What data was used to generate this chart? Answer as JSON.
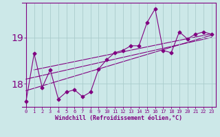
{
  "x": [
    0,
    1,
    2,
    3,
    4,
    5,
    6,
    7,
    8,
    9,
    10,
    11,
    12,
    13,
    14,
    15,
    16,
    17,
    18,
    19,
    20,
    21,
    22,
    23
  ],
  "y_main": [
    17.62,
    18.65,
    17.92,
    18.3,
    17.67,
    17.82,
    17.87,
    17.72,
    17.82,
    18.32,
    18.52,
    18.67,
    18.72,
    18.82,
    18.82,
    19.32,
    19.62,
    18.72,
    18.67,
    19.12,
    18.97,
    19.07,
    19.12,
    19.07
  ],
  "trend1_x": [
    0,
    23
  ],
  "trend1_y": [
    17.85,
    19.05
  ],
  "trend2_x": [
    0,
    23
  ],
  "trend2_y": [
    18.1,
    19.0
  ],
  "trend3_x": [
    1,
    23
  ],
  "trend3_y": [
    18.3,
    19.08
  ],
  "ylim_min": 17.5,
  "ylim_max": 19.75,
  "yticks": [
    18,
    19
  ],
  "xlim_min": -0.5,
  "xlim_max": 23.5,
  "xtick_labels": [
    "0",
    "1",
    "2",
    "3",
    "4",
    "5",
    "6",
    "7",
    "8",
    "9",
    "10",
    "11",
    "12",
    "13",
    "14",
    "15",
    "16",
    "17",
    "18",
    "19",
    "20",
    "21",
    "22",
    "23"
  ],
  "xlabel": "Windchill (Refroidissement éolien,°C)",
  "line_color": "#800080",
  "bg_color": "#cce8e8",
  "grid_color": "#aacccc",
  "tick_label_color": "#800080",
  "axis_color": "#800080",
  "marker": "D",
  "marker_size": 2.5,
  "linewidth": 0.8
}
